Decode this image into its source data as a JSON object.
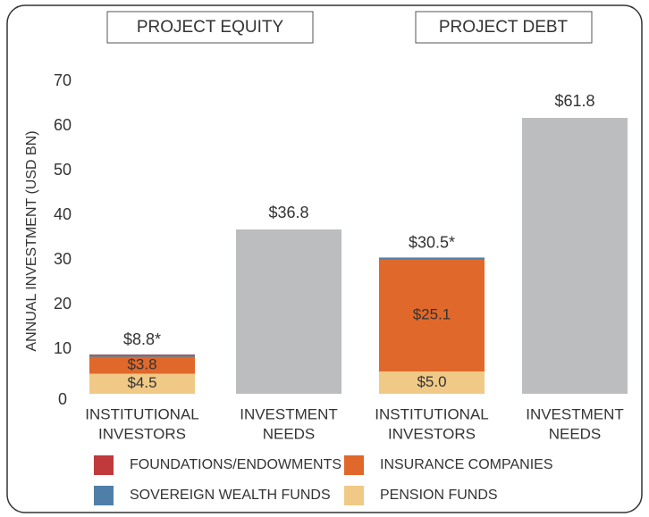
{
  "chart_data": {
    "type": "stacked_bar",
    "groups": [
      "PROJECT EQUITY",
      "PROJECT DEBT"
    ],
    "y_label": "ANNUAL INVESTMENT (USD BN)",
    "categories": [
      [
        "INSTITUTIONAL",
        "INVESTORS"
      ],
      [
        "INVESTMENT",
        "NEEDS"
      ],
      [
        "INSTITUTIONAL",
        "INVESTORS"
      ],
      [
        "INVESTMENT",
        "NEEDS"
      ]
    ],
    "series": [
      {
        "name": "PENSION FUNDS",
        "color": "#f0c987",
        "values": [
          4.5,
          null,
          5.0,
          null
        ],
        "value_labels": [
          "$4.5",
          null,
          "$5.0",
          null
        ]
      },
      {
        "name": "INSURANCE COMPANIES",
        "color": "#e0682a",
        "values": [
          3.8,
          null,
          25.1,
          null
        ],
        "value_labels": [
          "$3.8",
          null,
          "$25.1",
          null
        ]
      },
      {
        "name": "SOVEREIGN WEALTH FUNDS",
        "color": "#4f7fa8",
        "values": [
          0.4,
          null,
          0.3,
          null
        ]
      },
      {
        "name": "FOUNDATIONS/ENDOWMENTS",
        "color": "#c0393b",
        "values": [
          0.1,
          null,
          0.1,
          null
        ]
      }
    ],
    "needs": {
      "color": "#bcbdbf",
      "values": [
        null,
        36.8,
        null,
        61.8
      ],
      "value_labels": [
        null,
        "$36.8",
        null,
        "$61.8"
      ]
    },
    "totals": [
      8.8,
      null,
      30.5,
      null
    ],
    "total_labels": [
      "$8.8*",
      null,
      "$30.5*",
      null
    ],
    "ylim": [
      0,
      70
    ],
    "yticks": [
      0,
      10,
      20,
      30,
      40,
      50,
      60,
      70
    ]
  }
}
